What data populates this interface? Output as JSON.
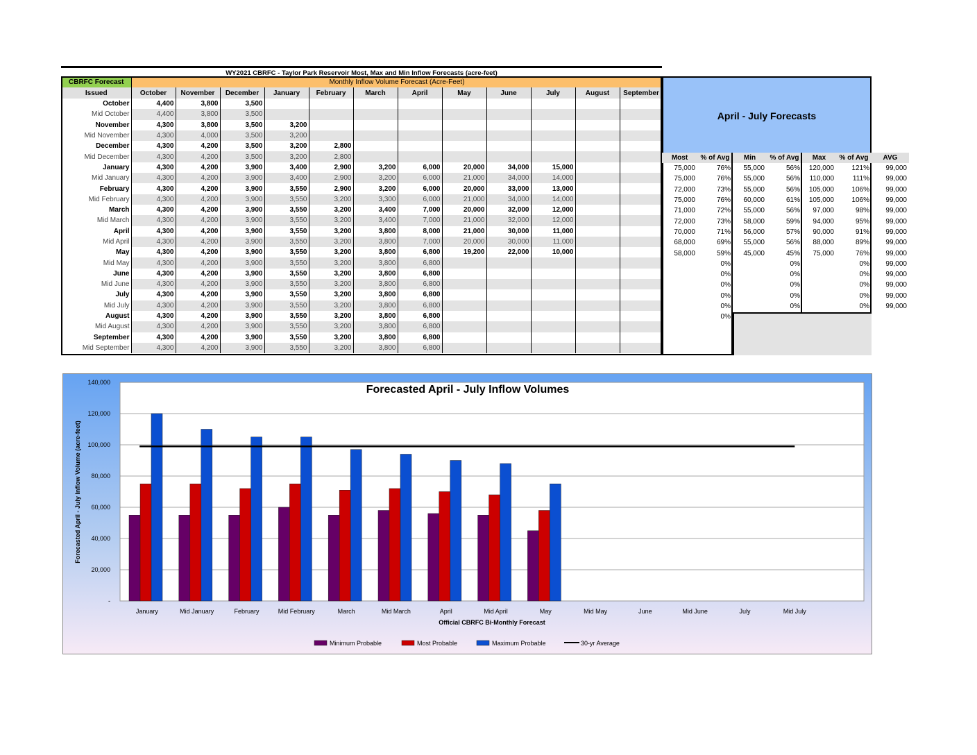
{
  "table_title": "WY2021 CBRFC - Taylor Park Reservoir Most, Max and Min Inflow Forecasts (acre-feet)",
  "header": {
    "forecast_label": "CBRFC Forecast",
    "issued_label": "Issued",
    "monthly_label": "Monthly Inflow Volume Forecast (Acre-Feet)",
    "months": [
      "October",
      "November",
      "December",
      "January",
      "February",
      "March",
      "April",
      "May",
      "June",
      "July",
      "August",
      "September"
    ]
  },
  "rows": [
    {
      "label": "October",
      "values": [
        "4,400",
        "3,800",
        "3,500",
        "",
        "",
        "",
        "",
        "",
        "",
        "",
        "",
        ""
      ]
    },
    {
      "label": "Mid October",
      "values": [
        "4,400",
        "3,800",
        "3,500",
        "",
        "",
        "",
        "",
        "",
        "",
        "",
        "",
        ""
      ]
    },
    {
      "label": "November",
      "values": [
        "4,300",
        "3,800",
        "3,500",
        "3,200",
        "",
        "",
        "",
        "",
        "",
        "",
        "",
        ""
      ]
    },
    {
      "label": "Mid November",
      "values": [
        "4,300",
        "4,000",
        "3,500",
        "3,200",
        "",
        "",
        "",
        "",
        "",
        "",
        "",
        ""
      ]
    },
    {
      "label": "December",
      "values": [
        "4,300",
        "4,200",
        "3,500",
        "3,200",
        "2,800",
        "",
        "",
        "",
        "",
        "",
        "",
        ""
      ]
    },
    {
      "label": "Mid December",
      "values": [
        "4,300",
        "4,200",
        "3,500",
        "3,200",
        "2,800",
        "",
        "",
        "",
        "",
        "",
        "",
        ""
      ]
    },
    {
      "label": "January",
      "values": [
        "4,300",
        "4,200",
        "3,900",
        "3,400",
        "2,900",
        "3,200",
        "6,000",
        "20,000",
        "34,000",
        "15,000",
        "",
        ""
      ]
    },
    {
      "label": "Mid January",
      "values": [
        "4,300",
        "4,200",
        "3,900",
        "3,400",
        "2,900",
        "3,200",
        "6,000",
        "21,000",
        "34,000",
        "14,000",
        "",
        ""
      ]
    },
    {
      "label": "February",
      "values": [
        "4,300",
        "4,200",
        "3,900",
        "3,550",
        "2,900",
        "3,200",
        "6,000",
        "20,000",
        "33,000",
        "13,000",
        "",
        ""
      ]
    },
    {
      "label": "Mid February",
      "values": [
        "4,300",
        "4,200",
        "3,900",
        "3,550",
        "3,200",
        "3,300",
        "6,000",
        "21,000",
        "34,000",
        "14,000",
        "",
        ""
      ]
    },
    {
      "label": "March",
      "values": [
        "4,300",
        "4,200",
        "3,900",
        "3,550",
        "3,200",
        "3,400",
        "7,000",
        "20,000",
        "32,000",
        "12,000",
        "",
        ""
      ]
    },
    {
      "label": "Mid March",
      "values": [
        "4,300",
        "4,200",
        "3,900",
        "3,550",
        "3,200",
        "3,400",
        "7,000",
        "21,000",
        "32,000",
        "12,000",
        "",
        ""
      ]
    },
    {
      "label": "April",
      "values": [
        "4,300",
        "4,200",
        "3,900",
        "3,550",
        "3,200",
        "3,800",
        "8,000",
        "21,000",
        "30,000",
        "11,000",
        "",
        ""
      ]
    },
    {
      "label": "Mid April",
      "values": [
        "4,300",
        "4,200",
        "3,900",
        "3,550",
        "3,200",
        "3,800",
        "7,000",
        "20,000",
        "30,000",
        "11,000",
        "",
        ""
      ]
    },
    {
      "label": "May",
      "values": [
        "4,300",
        "4,200",
        "3,900",
        "3,550",
        "3,200",
        "3,800",
        "6,800",
        "19,200",
        "22,000",
        "10,000",
        "",
        ""
      ]
    },
    {
      "label": "Mid May",
      "values": [
        "4,300",
        "4,200",
        "3,900",
        "3,550",
        "3,200",
        "3,800",
        "6,800",
        "",
        "",
        "",
        "",
        ""
      ]
    },
    {
      "label": "June",
      "values": [
        "4,300",
        "4,200",
        "3,900",
        "3,550",
        "3,200",
        "3,800",
        "6,800",
        "",
        "",
        "",
        "",
        ""
      ]
    },
    {
      "label": "Mid June",
      "values": [
        "4,300",
        "4,200",
        "3,900",
        "3,550",
        "3,200",
        "3,800",
        "6,800",
        "",
        "",
        "",
        "",
        ""
      ]
    },
    {
      "label": "July",
      "values": [
        "4,300",
        "4,200",
        "3,900",
        "3,550",
        "3,200",
        "3,800",
        "6,800",
        "",
        "",
        "",
        "",
        ""
      ]
    },
    {
      "label": "Mid July",
      "values": [
        "4,300",
        "4,200",
        "3,900",
        "3,550",
        "3,200",
        "3,800",
        "6,800",
        "",
        "",
        "",
        "",
        ""
      ]
    },
    {
      "label": "August",
      "values": [
        "4,300",
        "4,200",
        "3,900",
        "3,550",
        "3,200",
        "3,800",
        "6,800",
        "",
        "",
        "",
        "",
        ""
      ]
    },
    {
      "label": "Mid August",
      "values": [
        "4,300",
        "4,200",
        "3,900",
        "3,550",
        "3,200",
        "3,800",
        "6,800",
        "",
        "",
        "",
        "",
        ""
      ]
    },
    {
      "label": "September",
      "values": [
        "4,300",
        "4,200",
        "3,900",
        "3,550",
        "3,200",
        "3,800",
        "6,800",
        "",
        "",
        "",
        "",
        ""
      ]
    },
    {
      "label": "Mid September",
      "values": [
        "4,300",
        "4,200",
        "3,900",
        "3,550",
        "3,200",
        "3,800",
        "6,800",
        "",
        "",
        "",
        "",
        ""
      ]
    }
  ],
  "side": {
    "title": "April - July Forecasts",
    "headers": [
      "Most",
      "% of Avg",
      "Min",
      "% of Avg",
      "Max",
      "% of Avg",
      "AVG"
    ],
    "rows": [
      [
        "75,000",
        "76%",
        "55,000",
        "56%",
        "120,000",
        "121%",
        "99,000"
      ],
      [
        "75,000",
        "76%",
        "55,000",
        "56%",
        "110,000",
        "111%",
        "99,000"
      ],
      [
        "72,000",
        "73%",
        "55,000",
        "56%",
        "105,000",
        "106%",
        "99,000"
      ],
      [
        "75,000",
        "76%",
        "60,000",
        "61%",
        "105,000",
        "106%",
        "99,000"
      ],
      [
        "71,000",
        "72%",
        "55,000",
        "56%",
        "97,000",
        "98%",
        "99,000"
      ],
      [
        "72,000",
        "73%",
        "58,000",
        "59%",
        "94,000",
        "95%",
        "99,000"
      ],
      [
        "70,000",
        "71%",
        "56,000",
        "57%",
        "90,000",
        "91%",
        "99,000"
      ],
      [
        "68,000",
        "69%",
        "55,000",
        "56%",
        "88,000",
        "89%",
        "99,000"
      ],
      [
        "58,000",
        "59%",
        "45,000",
        "45%",
        "75,000",
        "76%",
        "99,000"
      ],
      [
        "",
        "0%",
        "",
        "0%",
        "",
        "0%",
        "99,000"
      ],
      [
        "",
        "0%",
        "",
        "0%",
        "",
        "0%",
        "99,000"
      ],
      [
        "",
        "0%",
        "",
        "0%",
        "",
        "0%",
        "99,000"
      ],
      [
        "",
        "0%",
        "",
        "0%",
        "",
        "0%",
        "99,000"
      ],
      [
        "",
        "0%",
        "",
        "0%",
        "",
        "0%",
        "99,000"
      ],
      [
        "",
        "0%",
        "",
        "",
        "",
        "",
        ""
      ]
    ]
  },
  "chart_data": {
    "type": "bar",
    "title": "Forecasted April - July Inflow Volumes",
    "xlabel": "Official CBRFC Bi-Monthly Forecast",
    "ylabel": "Forecasted April - July Inflow Volume (acre-feet)",
    "ylim": [
      0,
      140000
    ],
    "yticks": [
      "-",
      "20,000",
      "40,000",
      "60,000",
      "80,000",
      "100,000",
      "120,000",
      "140,000"
    ],
    "categories": [
      "January",
      "Mid January",
      "February",
      "Mid February",
      "March",
      "Mid March",
      "April",
      "Mid April",
      "May",
      "Mid May",
      "June",
      "Mid June",
      "July",
      "Mid July"
    ],
    "series": [
      {
        "name": "Minimum Probable",
        "color": "#660066",
        "values": [
          55000,
          55000,
          55000,
          60000,
          55000,
          58000,
          56000,
          55000,
          45000,
          null,
          null,
          null,
          null,
          null
        ]
      },
      {
        "name": "Most Probable",
        "color": "#cc0000",
        "values": [
          75000,
          75000,
          72000,
          75000,
          71000,
          72000,
          70000,
          68000,
          58000,
          null,
          null,
          null,
          null,
          null
        ]
      },
      {
        "name": "Maximum Probable",
        "color": "#0b4fd1",
        "values": [
          120000,
          110000,
          105000,
          105000,
          97000,
          94000,
          90000,
          88000,
          75000,
          null,
          null,
          null,
          null,
          null
        ]
      }
    ],
    "average": {
      "name": "30-yr Average",
      "value": 99000,
      "color": "#000000"
    },
    "legend": "bottom"
  }
}
